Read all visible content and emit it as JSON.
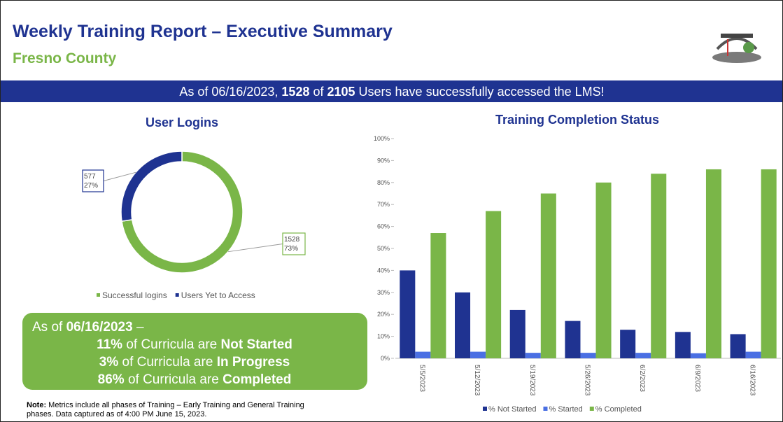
{
  "header": {
    "title": "Weekly Training Report – Executive Summary",
    "subtitle": "Fresno County"
  },
  "banner": {
    "prefix": "As of 06/16/2023, ",
    "users": "1528",
    "mid": " of ",
    "total": "2105",
    "suffix": " Users have successfully accessed the LMS!"
  },
  "chart_data": [
    {
      "type": "donut",
      "title": "User Logins",
      "categories": [
        "Successful logins",
        "Users Yet to Access"
      ],
      "values": [
        1528,
        577
      ],
      "percent_labels": [
        "73%",
        "27%"
      ],
      "colors": [
        "#7ab648",
        "#1f3391"
      ],
      "legend": "bottom"
    },
    {
      "type": "bar",
      "title": "Training Completion Status",
      "categories": [
        "5/5/2023",
        "5/12/2023",
        "5/19/2023",
        "5/26/2023",
        "6/2/2023",
        "6/9/2023",
        "6/16/2023"
      ],
      "series": [
        {
          "name": "% Not Started",
          "color": "#1f3391",
          "values": [
            40,
            30,
            22,
            17,
            13,
            12,
            11
          ]
        },
        {
          "name": "% Started",
          "color": "#4a6fe3",
          "values": [
            3,
            3,
            2.5,
            2.5,
            2.5,
            2.3,
            3
          ]
        },
        {
          "name": "% Completed",
          "color": "#7ab648",
          "values": [
            57,
            67,
            75,
            80,
            84,
            86,
            86
          ]
        }
      ],
      "ylim": [
        0,
        100
      ],
      "yticks": [
        {
          "value": 0,
          "label": "0%"
        },
        {
          "value": 10,
          "label": "10%"
        },
        {
          "value": 20,
          "label": "20%"
        },
        {
          "value": 30,
          "label": "30%"
        },
        {
          "value": 40,
          "label": "40%"
        },
        {
          "value": 50,
          "label": "50%"
        },
        {
          "value": 60,
          "label": "60%"
        },
        {
          "value": 70,
          "label": "70%"
        },
        {
          "value": 80,
          "label": "80%"
        },
        {
          "value": 90,
          "label": "90%"
        },
        {
          "value": 100,
          "label": "100%"
        }
      ],
      "legend": "bottom"
    }
  ],
  "summary": {
    "prefix": "As of ",
    "date": "06/16/2023",
    "suffix": " –",
    "lines": [
      {
        "value": "11%",
        "text": " of Curricula are ",
        "status": "Not Started"
      },
      {
        "value": "3%",
        "text": " of Curricula are ",
        "status": "In Progress"
      },
      {
        "value": "86%",
        "text": " of Curricula are ",
        "status": "Completed"
      }
    ]
  },
  "note": {
    "label": "Note:",
    "line1": " Metrics include all phases of Training – Early Training and General Training",
    "line2": "phases. Data captured as of 4:00 PM June 15, 2023."
  }
}
